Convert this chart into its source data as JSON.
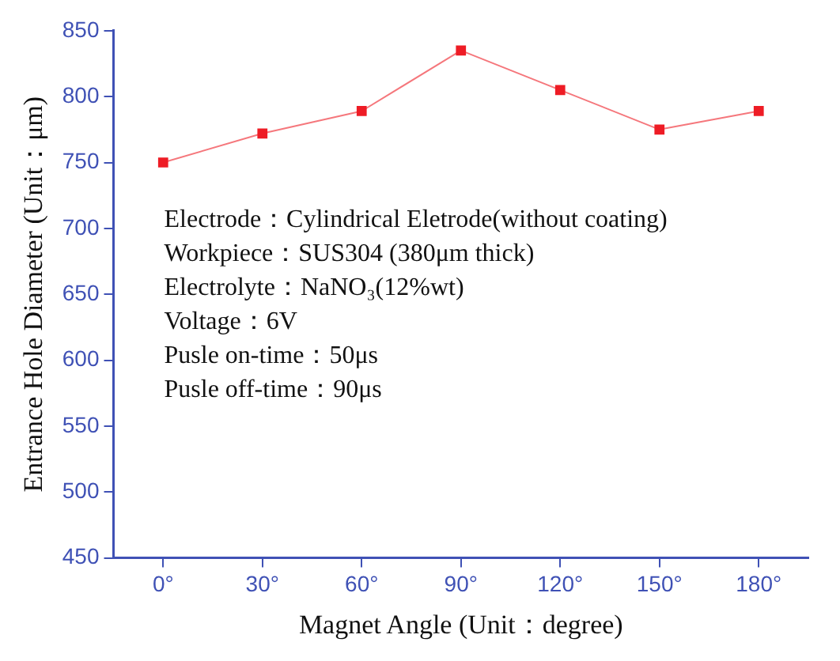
{
  "chart_data": {
    "type": "line",
    "xlabel": "Magnet Angle (Unit：degree)",
    "ylabel": "Entrance Hole Diameter (Unit：μm)",
    "x": [
      0,
      30,
      60,
      90,
      120,
      150,
      180
    ],
    "series": [
      {
        "color": "#ee1c25",
        "values": [
          750,
          772,
          789,
          835,
          805,
          775,
          789
        ]
      }
    ],
    "xlim": [
      -15,
      195
    ],
    "xticks": [
      {
        "value": 0,
        "label": "0°"
      },
      {
        "value": 30,
        "label": "30°"
      },
      {
        "value": 60,
        "label": "60°"
      },
      {
        "value": 90,
        "label": "90°"
      },
      {
        "value": 120,
        "label": "120°"
      },
      {
        "value": 150,
        "label": "150°"
      },
      {
        "value": 180,
        "label": "180°"
      }
    ],
    "ylim": [
      450,
      850
    ],
    "yticks": [
      450,
      500,
      550,
      600,
      650,
      700,
      750,
      800,
      850
    ],
    "grid": false,
    "legend": false,
    "marker": "square",
    "line_style": "solid",
    "annotations": [
      "Electrode：Cylindrical Eletrode(without coating)",
      "Workpiece：SUS304 (380μm thick)",
      "Electrolyte：NaNO₃(12%wt)",
      "Voltage：6V",
      "Pusle on-time：50μs",
      "Pusle off-time：90μs"
    ]
  }
}
